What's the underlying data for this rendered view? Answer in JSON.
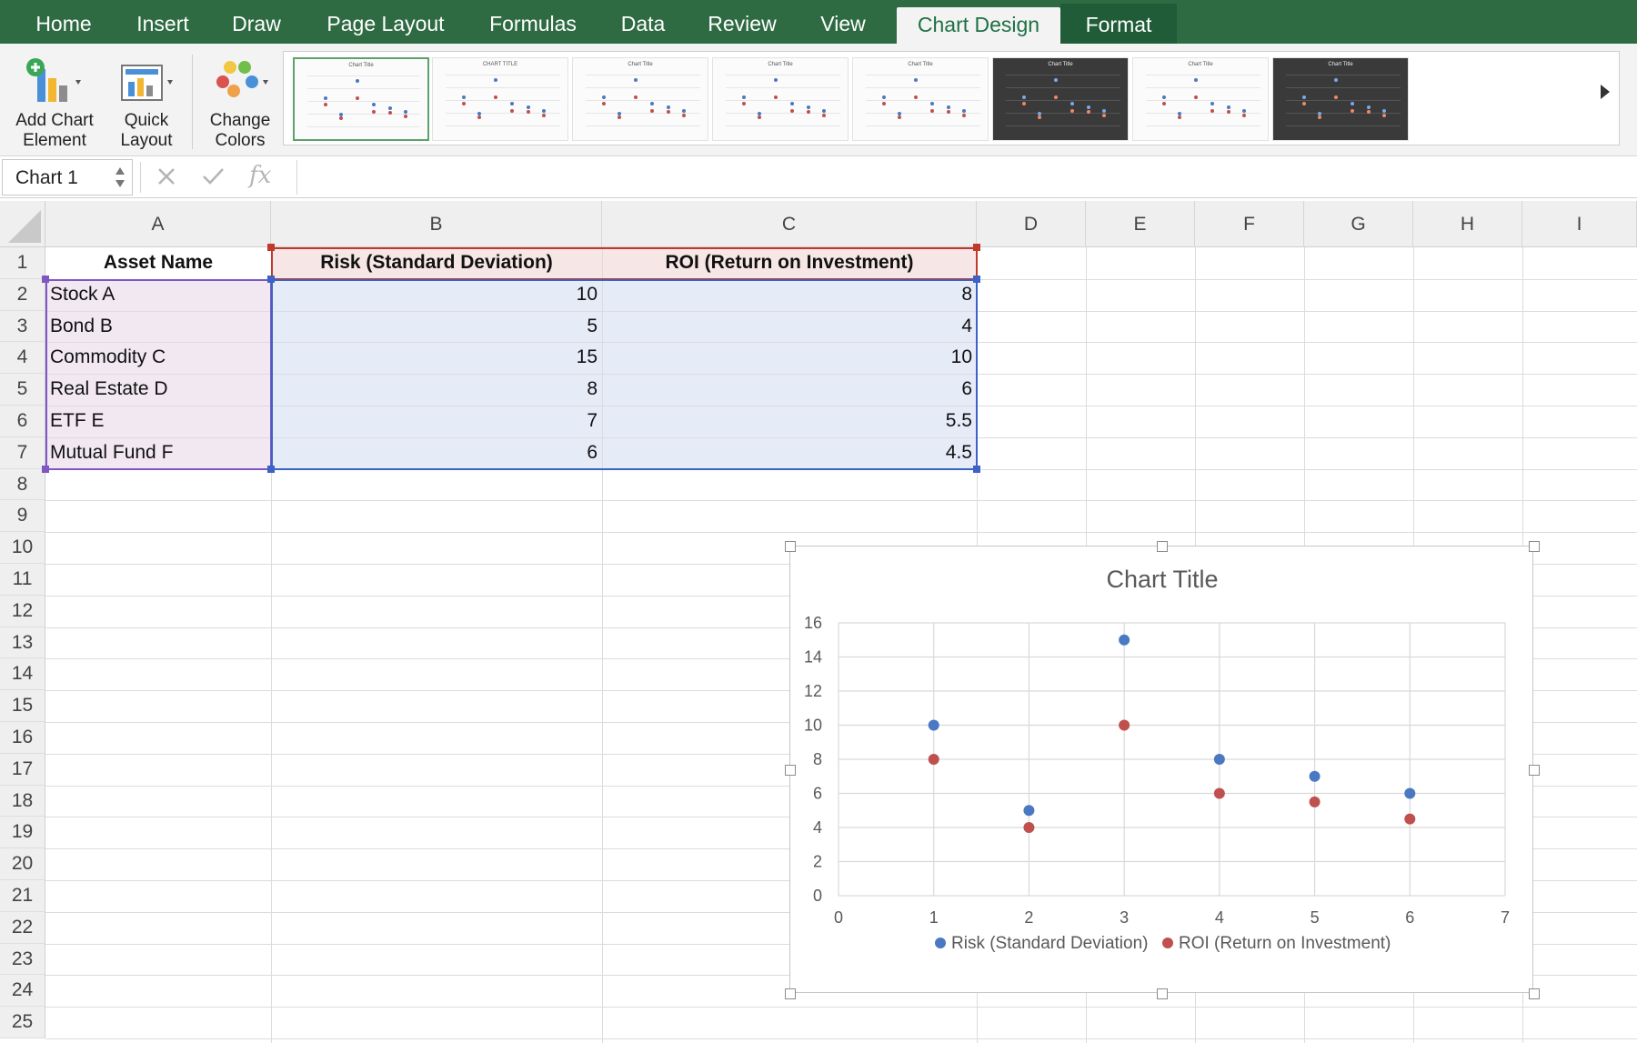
{
  "ribbon": {
    "tabs": [
      "Home",
      "Insert",
      "Draw",
      "Page Layout",
      "Formulas",
      "Data",
      "Review",
      "View",
      "Chart Design",
      "Format"
    ],
    "active_tab": "Chart Design",
    "buttons": {
      "add_chart_element": [
        "Add Chart",
        "Element"
      ],
      "quick_layout": [
        "Quick",
        "Layout"
      ],
      "change_colors": [
        "Change",
        "Colors"
      ]
    },
    "style_thumbnail_titles": [
      "Chart Title",
      "CHART TITLE",
      "Chart Title",
      "Chart Title",
      "Chart Title",
      "Chart Title",
      "Chart Title",
      "Chart Title"
    ],
    "selected_style_index": 0
  },
  "formula_bar": {
    "name_box": "Chart 1",
    "cancel_icon": "cancel-x-icon",
    "enter_icon": "enter-check-icon",
    "function_icon": "function-fx-icon",
    "function_symbol": "fx",
    "formula": ""
  },
  "sheet": {
    "columns": [
      "A",
      "B",
      "C",
      "D",
      "E",
      "F",
      "G",
      "H",
      "I"
    ],
    "rows": [
      "1",
      "2",
      "3",
      "4",
      "5",
      "6",
      "7",
      "8",
      "9",
      "10",
      "11",
      "12",
      "13",
      "14",
      "15",
      "16",
      "17",
      "18",
      "19",
      "20",
      "21",
      "22",
      "23",
      "24",
      "25"
    ],
    "headers": [
      "Asset Name",
      "Risk (Standard Deviation)",
      "ROI (Return on Investment)"
    ],
    "data": [
      [
        "Stock A",
        "10",
        "8"
      ],
      [
        "Bond B",
        "5",
        "4"
      ],
      [
        "Commodity C",
        "15",
        "10"
      ],
      [
        "Real Estate D",
        "8",
        "6"
      ],
      [
        "ETF E",
        "7",
        "5.5"
      ],
      [
        "Mutual Fund F",
        "6",
        "4.5"
      ]
    ],
    "colors": {
      "label_range": "#7e57c2",
      "value_range": "#3b62c4",
      "header_range": "#c0392b",
      "label_fill": "#f1e8f1",
      "value_fill": "#e6ebf8",
      "header_fill": "#f7e6e6"
    }
  },
  "chart_data": {
    "type": "scatter",
    "title": "Chart Title",
    "xlabel": "",
    "ylabel": "",
    "xlim": [
      0,
      7
    ],
    "ylim": [
      0,
      16
    ],
    "x_ticks": [
      "0",
      "1",
      "2",
      "3",
      "4",
      "5",
      "6",
      "7"
    ],
    "y_ticks": [
      "0",
      "2",
      "4",
      "6",
      "8",
      "10",
      "12",
      "14",
      "16"
    ],
    "grid": true,
    "legend_position": "bottom",
    "series": [
      {
        "name": "Risk (Standard Deviation)",
        "color": "#4a78c2",
        "x": [
          1,
          2,
          3,
          4,
          5,
          6
        ],
        "y": [
          10,
          5,
          15,
          8,
          7,
          6
        ]
      },
      {
        "name": "ROI (Return on Investment)",
        "color": "#c0504d",
        "x": [
          1,
          2,
          3,
          4,
          5,
          6
        ],
        "y": [
          8,
          4,
          10,
          6,
          5.5,
          4.5
        ]
      }
    ]
  }
}
